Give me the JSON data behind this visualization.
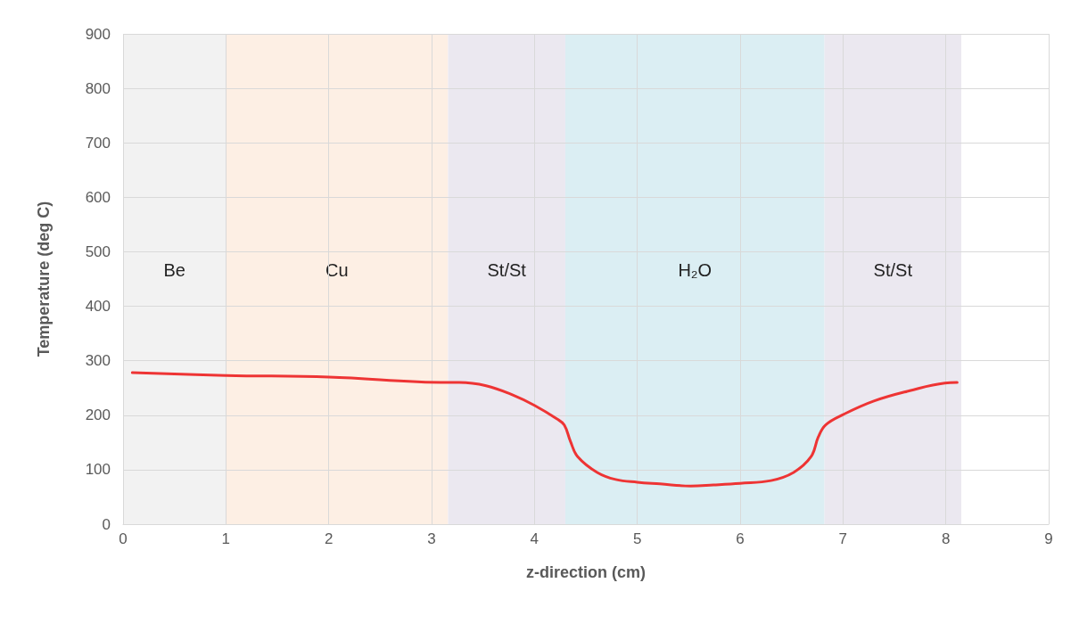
{
  "chart_data": {
    "type": "line",
    "xlabel": "z-direction (cm)",
    "ylabel": "Temperature (deg C)",
    "xlim": [
      0,
      9
    ],
    "xticks": [
      0,
      1,
      2,
      3,
      4,
      5,
      6,
      7,
      8,
      9
    ],
    "ylim": [
      0,
      900
    ],
    "yticks": [
      0,
      100,
      200,
      300,
      400,
      500,
      600,
      700,
      800,
      900
    ],
    "grid": true,
    "marker": "none",
    "line_style": "solid",
    "series": [
      {
        "color": "#ee3434",
        "x": [
          0.09,
          1.0,
          2.0,
          3.16,
          3.27,
          3.53,
          3.79,
          4.0,
          4.22,
          4.29,
          4.35,
          4.42,
          4.61,
          4.79,
          5.0,
          5.22,
          5.52,
          5.74,
          6.0,
          6.3,
          6.52,
          6.69,
          6.76,
          6.83,
          7.0,
          7.3,
          7.65,
          7.99,
          8.11
        ],
        "values": [
          278,
          273,
          270,
          260,
          260,
          254,
          237,
          218,
          193,
          182,
          152,
          124,
          95,
          82,
          77,
          74,
          70,
          72,
          75,
          80,
          95,
          124,
          160,
          182,
          201,
          226,
          245,
          259,
          260
        ]
      }
    ],
    "bands": [
      {
        "axis": "x",
        "from": 0,
        "to": 1,
        "label": "Be",
        "color": "#f2f2f2"
      },
      {
        "axis": "x",
        "from": 1,
        "to": 3.16,
        "label": "Cu",
        "color": "#fdefe4"
      },
      {
        "axis": "x",
        "from": 3.16,
        "to": 4.3,
        "label": "St/St",
        "color": "#ebe8f0"
      },
      {
        "axis": "x",
        "from": 4.3,
        "to": 6.82,
        "label": "H₂O",
        "color": "#dbeef3"
      },
      {
        "axis": "x",
        "from": 6.82,
        "to": 8.15,
        "label": "St/St",
        "color": "#ebe8f0"
      }
    ]
  }
}
